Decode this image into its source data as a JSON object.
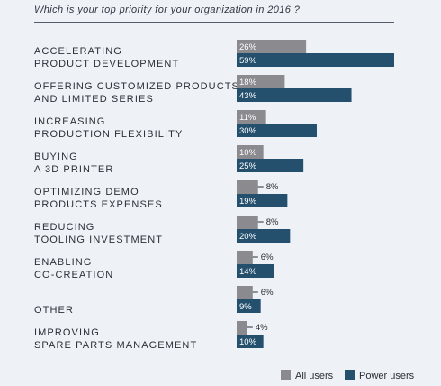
{
  "question": "Which is your top priority for your organization in 2016 ?",
  "colors": {
    "all_users": "#8a8a8f",
    "power_users": "#24506e"
  },
  "chart_data": {
    "type": "bar",
    "orientation": "horizontal",
    "categories": [
      [
        "ACCELERATING",
        "PRODUCT DEVELOPMENT"
      ],
      [
        "OFFERING CUSTOMIZED PRODUCTS",
        "AND LIMITED SERIES"
      ],
      [
        "INCREASING",
        "PRODUCTION FLEXIBILITY"
      ],
      [
        "BUYING",
        "A 3D PRINTER"
      ],
      [
        "OPTIMIZING DEMO",
        "PRODUCTS EXPENSES"
      ],
      [
        "REDUCING",
        "TOOLING INVESTMENT"
      ],
      [
        "ENABLING",
        "CO-CREATION"
      ],
      [
        "OTHER"
      ],
      [
        "IMPROVING",
        "SPARE PARTS MANAGEMENT"
      ]
    ],
    "series": [
      {
        "name": "All users",
        "values": [
          26,
          18,
          11,
          10,
          8,
          8,
          6,
          6,
          4
        ],
        "labels": [
          "26%",
          "18%",
          "11%",
          "10%",
          "8%",
          "8%",
          "6%",
          "6%",
          "4%"
        ]
      },
      {
        "name": "Power users",
        "values": [
          59,
          43,
          30,
          25,
          19,
          20,
          14,
          9,
          10
        ],
        "labels": [
          "59%",
          "43%",
          "30%",
          "25%",
          "19%",
          "20%",
          "14%",
          "9%",
          "10%"
        ]
      }
    ],
    "xlim": [
      0,
      59
    ],
    "legend": "bottom-right",
    "grid": false
  }
}
